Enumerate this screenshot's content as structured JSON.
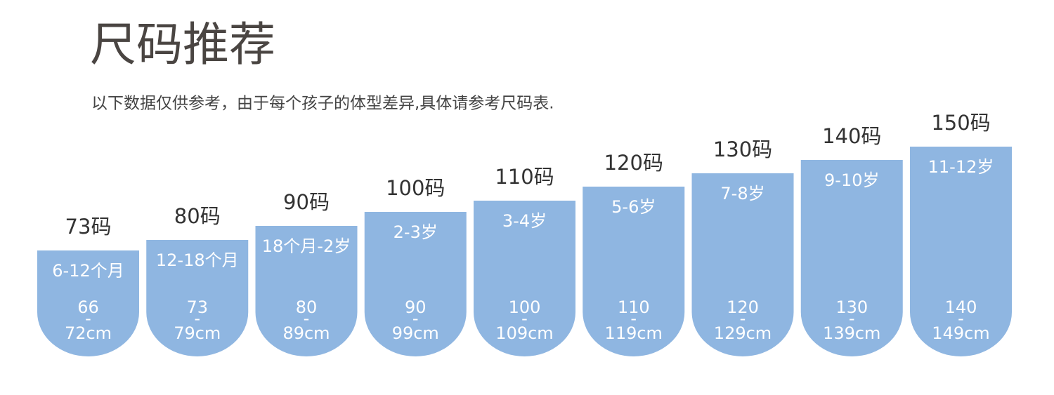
{
  "header": {
    "title": "尺码推荐",
    "subtitle": "以下数据仅供参考，由于每个孩子的体型差异,具体请参考尺码表."
  },
  "range_separator": "-",
  "sizes": [
    {
      "label": "73码",
      "age": "6-12个月",
      "min": "66",
      "max": "72cm"
    },
    {
      "label": "80码",
      "age": "12-18个月",
      "min": "73",
      "max": "79cm"
    },
    {
      "label": "90码",
      "age": "18个月-2岁",
      "min": "80",
      "max": "89cm"
    },
    {
      "label": "100码",
      "age": "2-3岁",
      "min": "90",
      "max": "99cm"
    },
    {
      "label": "110码",
      "age": "3-4岁",
      "min": "100",
      "max": "109cm"
    },
    {
      "label": "120码",
      "age": "5-6岁",
      "min": "110",
      "max": "119cm"
    },
    {
      "label": "130码",
      "age": "7-8岁",
      "min": "120",
      "max": "129cm"
    },
    {
      "label": "140码",
      "age": "9-10岁",
      "min": "130",
      "max": "139cm"
    },
    {
      "label": "150码",
      "age": "11-12岁",
      "min": "140",
      "max": "149cm"
    }
  ]
}
